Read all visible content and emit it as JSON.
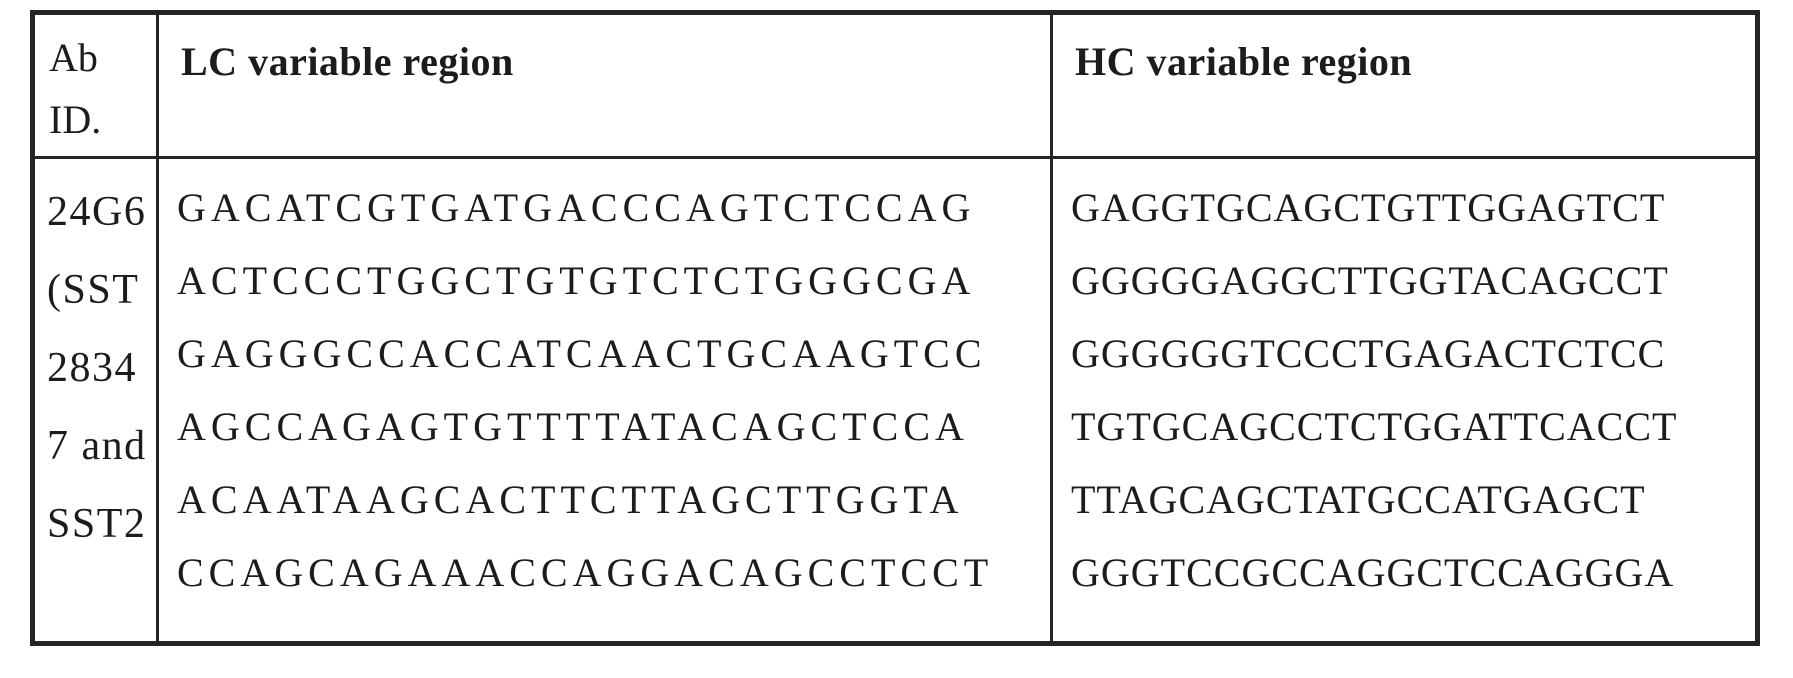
{
  "table": {
    "headers": {
      "ab_id": "Ab ID.",
      "ab_id_lines": [
        "Ab",
        "ID."
      ],
      "lc_label": "LC variable region",
      "hc_label": "HC variable region"
    },
    "row": {
      "ab_id": "24G6 (SST 28347 and SST2",
      "ab_id_lines": [
        "24G6",
        "(SST",
        "2834",
        "7 and",
        "SST2"
      ],
      "lc_sequence_lines": [
        "GACATCGTGATGACCCAGTCTCCAG",
        "ACTCCCTGGCTGTGTCTCTGGGCGA",
        "GAGGGCCACCATCAACTGCAAGTCC",
        "AGCCAGAGTGTTTTATACAGCTCCA",
        "ACAATAAGCACTTCTTAGCTTGGTA",
        "CCAGCAGAAACCAGGACAGCCTCCT"
      ],
      "lc_sequence_full": "GACATCGTGATGACCCAGTCTCCAGACTCCCTGGCTGTGTCTCTGGGCGAGAGGGCCACCATCAACTGCAAGTCCAGCCAGAGTGTTTTATACAGCTCCAACAATAAGCACTTCTTAGCTTGGTACCAGCAGAAACCAGGACAGCCTCCT",
      "hc_sequence_lines": [
        "GAGGTGCAGCTGTTGGAGTCT",
        "GGGGGAGGCTTGGTACAGCCT",
        "GGGGGGTCCCTGAGACTCTCC",
        "TGTGCAGCCTCTGGATTCACCT",
        "TTAGCAGCTATGCCATGAGCT",
        "GGGTCCGCCAGGCTCCAGGGA"
      ],
      "hc_sequence_full": "GAGGTGCAGCTGTTGGAGTCTGGGGGAGGCTTGGTACAGCCTGGGGGGTCCCTGAGACTCTCCTGTGCAGCCTCTGGATTCACCTTTAGCAGCTATGCCATGAGCTGGGTCCGCCAGGCTCCAGGGA"
    },
    "colors": {
      "background": "#ffffff",
      "border": "#242424",
      "text": "#1c1c1c"
    }
  }
}
